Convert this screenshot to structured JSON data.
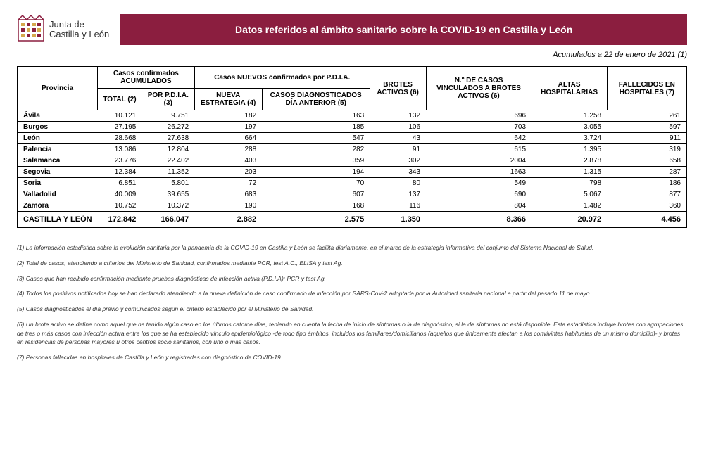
{
  "logo": {
    "line1": "Junta de",
    "line2": "Castilla y León",
    "primary_color": "#8b1e3f",
    "accent_color": "#d4a84b"
  },
  "title": "Datos referidos al ámbito sanitario sobre la COVID-19 en Castilla y León",
  "title_bg": "#8b1e3f",
  "date_line": "Acumulados a 22 de enero de 2021 (1)",
  "table": {
    "group_headers": {
      "confirmed": "Casos confirmados ACUMULADOS",
      "new_cases": "Casos NUEVOS confirmados por P.D.I.A."
    },
    "col_headers": {
      "province": "Provincia",
      "total": "TOTAL (2)",
      "pdia": "POR P.D.I.A. (3)",
      "nueva_estrategia": "NUEVA ESTRATEGIA (4)",
      "casos_dia_anterior": "CASOS DIAGNOSTICADOS DÍA ANTERIOR (5)",
      "brotes_activos": "BROTES ACTIVOS (6)",
      "casos_vinculados": "N.º DE CASOS VINCULADOS A BROTES ACTIVOS (6)",
      "altas": "ALTAS HOSPITALARIAS",
      "fallecidos": "FALLECIDOS EN HOSPITALES (7)"
    },
    "rows": [
      {
        "prov": "Ávila",
        "total": "10.121",
        "pdia": "9.751",
        "nueva": "182",
        "ant": "163",
        "brotes": "132",
        "vinc": "696",
        "altas": "1.258",
        "fall": "261"
      },
      {
        "prov": "Burgos",
        "total": "27.195",
        "pdia": "26.272",
        "nueva": "197",
        "ant": "185",
        "brotes": "106",
        "vinc": "703",
        "altas": "3.055",
        "fall": "597"
      },
      {
        "prov": "León",
        "total": "28.668",
        "pdia": "27.638",
        "nueva": "664",
        "ant": "547",
        "brotes": "43",
        "vinc": "642",
        "altas": "3.724",
        "fall": "911"
      },
      {
        "prov": "Palencia",
        "total": "13.086",
        "pdia": "12.804",
        "nueva": "288",
        "ant": "282",
        "brotes": "91",
        "vinc": "615",
        "altas": "1.395",
        "fall": "319"
      },
      {
        "prov": "Salamanca",
        "total": "23.776",
        "pdia": "22.402",
        "nueva": "403",
        "ant": "359",
        "brotes": "302",
        "vinc": "2004",
        "altas": "2.878",
        "fall": "658"
      },
      {
        "prov": "Segovia",
        "total": "12.384",
        "pdia": "11.352",
        "nueva": "203",
        "ant": "194",
        "brotes": "343",
        "vinc": "1663",
        "altas": "1.315",
        "fall": "287"
      },
      {
        "prov": "Soria",
        "total": "6.851",
        "pdia": "5.801",
        "nueva": "72",
        "ant": "70",
        "brotes": "80",
        "vinc": "549",
        "altas": "798",
        "fall": "186"
      },
      {
        "prov": "Valladolid",
        "total": "40.009",
        "pdia": "39.655",
        "nueva": "683",
        "ant": "607",
        "brotes": "137",
        "vinc": "690",
        "altas": "5.067",
        "fall": "877"
      },
      {
        "prov": "Zamora",
        "total": "10.752",
        "pdia": "10.372",
        "nueva": "190",
        "ant": "168",
        "brotes": "116",
        "vinc": "804",
        "altas": "1.482",
        "fall": "360"
      }
    ],
    "total_row": {
      "prov": "CASTILLA Y LEÓN",
      "total": "172.842",
      "pdia": "166.047",
      "nueva": "2.882",
      "ant": "2.575",
      "brotes": "1.350",
      "vinc": "8.366",
      "altas": "20.972",
      "fall": "4.456"
    }
  },
  "footnotes": [
    "(1) La información estadística sobre la evolución sanitaria por la pandemia de la COVID-19 en Castilla y León se facilita diariamente, en el marco de la estrategia informativa del conjunto del Sistema Nacional de Salud.",
    "(2) Total de casos, atendiendo a criterios del Ministerio de Sanidad, confirmados mediante PCR, test A.C., ELISA y test Ag.",
    "(3) Casos que han recibido confirmación mediante pruebas diagnósticas de infección activa (P.D.I.A): PCR y test Ag.",
    "(4) Todos los positivos notificados hoy se han declarado atendiendo a la nueva definición de caso confirmado de infección por SARS-CoV-2 adoptada por la Autoridad sanitaria nacional a partir del pasado 11 de mayo.",
    "(5) Casos diagnosticados el día previo y comunicados según el criterio establecido por el Ministerio de Sanidad.",
    "(6) Un brote activo se define como aquel que ha tenido algún caso en los últimos catorce días, teniendo en cuenta la fecha de inicio de síntomas o la de diagnóstico, si la de síntomas no está disponible. Esta estadística incluye brotes con agrupaciones de tres o más casos con infección activa entre los que se ha establecido vínculo epidemiológico -de todo tipo ámbitos, incluidos los familiares/domiciliarios (aquellos que únicamente afectan a los convivintes habituales de un mismo domicilio)- y brotes en residencias de personas mayores u otros centros socio sanitarios, con uno o más casos.",
    "(7) Personas fallecidas en hospitales de Castilla y León y registradas con diagnóstico de COVID-19."
  ]
}
